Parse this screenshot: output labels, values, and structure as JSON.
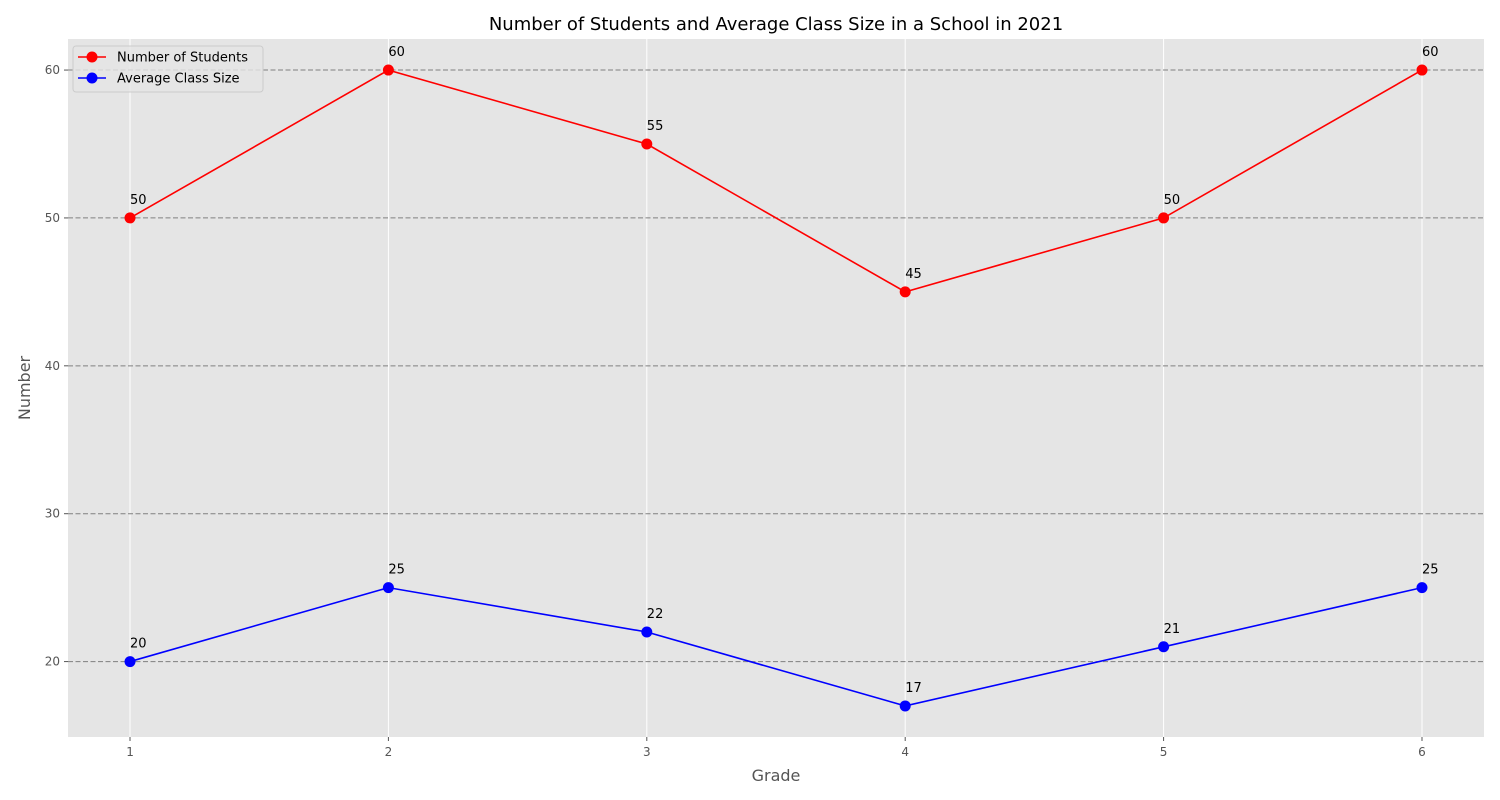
{
  "chart_data": {
    "type": "line",
    "title": "Number of Students and Average Class Size in a School in 2021",
    "xlabel": "Grade",
    "ylabel": "Number",
    "x": [
      1,
      2,
      3,
      4,
      5,
      6
    ],
    "xlim": [
      0.76,
      6.24
    ],
    "ylim": [
      14.9,
      62.1
    ],
    "yticks": [
      20,
      30,
      40,
      50,
      60
    ],
    "grid": true,
    "legend_position": "top-left",
    "series": [
      {
        "name": "Number of Students",
        "color": "#ff0000",
        "values": [
          50,
          60,
          55,
          45,
          50,
          60
        ]
      },
      {
        "name": "Average Class Size",
        "color": "#0000ff",
        "values": [
          20,
          25,
          22,
          17,
          21,
          25
        ]
      }
    ]
  },
  "colors": {
    "plot_background": "#e5e5e5",
    "gridline_vertical": "#ffffff",
    "gridline_horizontal": "#808080"
  }
}
